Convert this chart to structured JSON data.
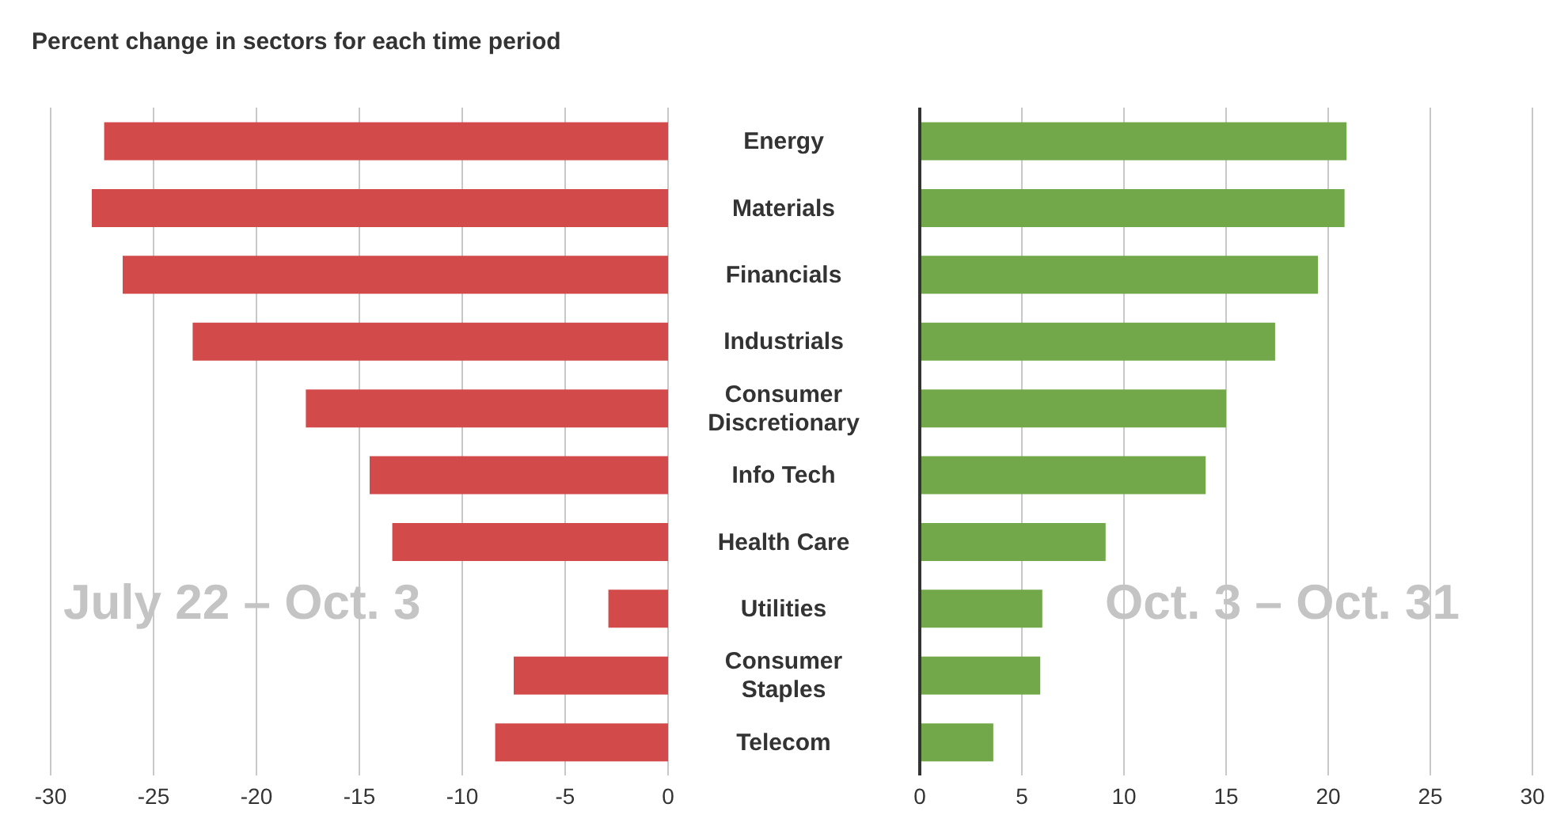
{
  "chart_data": [
    {
      "type": "bar",
      "orientation": "horizontal",
      "title": "Percent change in sectors for each time period",
      "categories": [
        null,
        null,
        null,
        null,
        null,
        null,
        null,
        null,
        null,
        null
      ],
      "series": [
        {
          "color": "#d24a4a",
          "values": [
            -27.4,
            -28.0,
            -26.5,
            -23.1,
            -17.6,
            -14.5,
            -13.4,
            -2.9,
            -7.5,
            -8.4
          ]
        }
      ],
      "xlim": [
        -30,
        0
      ],
      "xticks": [
        -30,
        -25,
        -20,
        -15,
        -10,
        -5,
        0
      ],
      "grid": "x",
      "tick_labels": "x",
      "annotations": [
        "July 22 – Oct. 3"
      ]
    },
    {
      "type": "bar",
      "orientation": "horizontal",
      "categories": [
        "Energy",
        "Materials",
        "Financials",
        "Industrials",
        "Consumer Discretionary",
        "Info Tech",
        "Health Care",
        "Utilities",
        "Consumer Staples",
        "Telecom"
      ],
      "series": [
        {
          "color": "#72a84a",
          "values": [
            20.9,
            20.8,
            19.5,
            17.4,
            15.0,
            14.0,
            9.1,
            6.0,
            5.9,
            3.6
          ]
        }
      ],
      "xlim": [
        0,
        30
      ],
      "xticks": [
        0,
        5,
        10,
        15,
        20,
        25,
        30
      ],
      "grid": "x",
      "annotations": [
        "Oct. 3 – Oct. 31"
      ]
    }
  ]
}
